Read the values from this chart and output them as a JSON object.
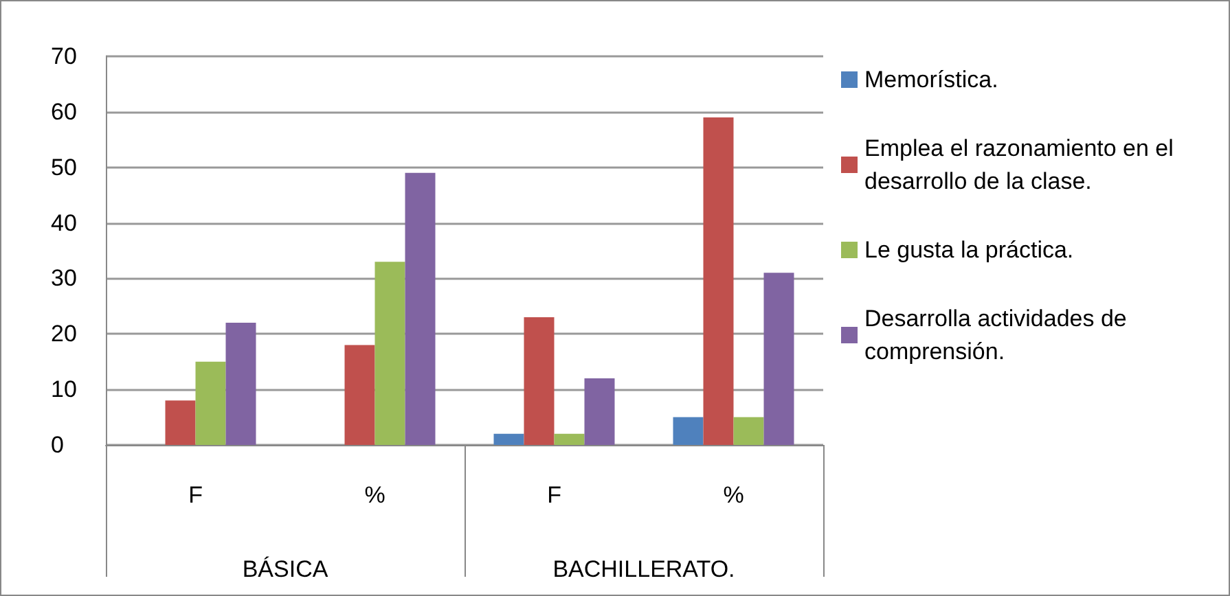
{
  "chart_data": {
    "type": "bar",
    "categories": [
      "F",
      "%",
      "F",
      "%"
    ],
    "annotations": [
      "BÁSICA",
      "BACHILLERATO."
    ],
    "series": [
      {
        "name": "Memorística.",
        "color": "#4f81bd",
        "values": [
          0,
          0,
          2,
          5
        ]
      },
      {
        "name": "Emplea el razonamiento en el desarrollo de la clase.",
        "color": "#c0504d",
        "values": [
          8,
          18,
          23,
          59
        ]
      },
      {
        "name": "Le gusta la práctica.",
        "color": "#9bbb59",
        "values": [
          15,
          33,
          2,
          5
        ]
      },
      {
        "name": "Desarrolla actividades de comprensión.",
        "color": "#8064a2",
        "values": [
          22,
          49,
          12,
          31
        ]
      }
    ],
    "ylim": [
      0,
      70
    ],
    "yticks": [
      0,
      10,
      20,
      30,
      40,
      50,
      60,
      70
    ],
    "grid": "y",
    "legend": "right"
  }
}
